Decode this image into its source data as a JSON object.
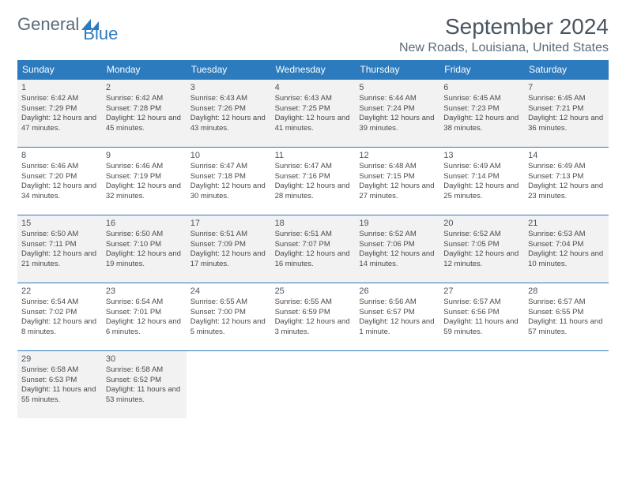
{
  "logo": {
    "general": "General",
    "blue": "Blue"
  },
  "title": "September 2024",
  "location": "New Roads, Louisiana, United States",
  "header_bg": "#2c7bbf",
  "border_color": "#2c7bbf",
  "odd_row_bg": "#f2f2f2",
  "even_row_bg": "#ffffff",
  "text_color": "#4a4a4a",
  "weekdays": [
    "Sunday",
    "Monday",
    "Tuesday",
    "Wednesday",
    "Thursday",
    "Friday",
    "Saturday"
  ],
  "days": [
    {
      "n": 1,
      "sr": "6:42 AM",
      "ss": "7:29 PM",
      "dl": "12 hours and 47 minutes."
    },
    {
      "n": 2,
      "sr": "6:42 AM",
      "ss": "7:28 PM",
      "dl": "12 hours and 45 minutes."
    },
    {
      "n": 3,
      "sr": "6:43 AM",
      "ss": "7:26 PM",
      "dl": "12 hours and 43 minutes."
    },
    {
      "n": 4,
      "sr": "6:43 AM",
      "ss": "7:25 PM",
      "dl": "12 hours and 41 minutes."
    },
    {
      "n": 5,
      "sr": "6:44 AM",
      "ss": "7:24 PM",
      "dl": "12 hours and 39 minutes."
    },
    {
      "n": 6,
      "sr": "6:45 AM",
      "ss": "7:23 PM",
      "dl": "12 hours and 38 minutes."
    },
    {
      "n": 7,
      "sr": "6:45 AM",
      "ss": "7:21 PM",
      "dl": "12 hours and 36 minutes."
    },
    {
      "n": 8,
      "sr": "6:46 AM",
      "ss": "7:20 PM",
      "dl": "12 hours and 34 minutes."
    },
    {
      "n": 9,
      "sr": "6:46 AM",
      "ss": "7:19 PM",
      "dl": "12 hours and 32 minutes."
    },
    {
      "n": 10,
      "sr": "6:47 AM",
      "ss": "7:18 PM",
      "dl": "12 hours and 30 minutes."
    },
    {
      "n": 11,
      "sr": "6:47 AM",
      "ss": "7:16 PM",
      "dl": "12 hours and 28 minutes."
    },
    {
      "n": 12,
      "sr": "6:48 AM",
      "ss": "7:15 PM",
      "dl": "12 hours and 27 minutes."
    },
    {
      "n": 13,
      "sr": "6:49 AM",
      "ss": "7:14 PM",
      "dl": "12 hours and 25 minutes."
    },
    {
      "n": 14,
      "sr": "6:49 AM",
      "ss": "7:13 PM",
      "dl": "12 hours and 23 minutes."
    },
    {
      "n": 15,
      "sr": "6:50 AM",
      "ss": "7:11 PM",
      "dl": "12 hours and 21 minutes."
    },
    {
      "n": 16,
      "sr": "6:50 AM",
      "ss": "7:10 PM",
      "dl": "12 hours and 19 minutes."
    },
    {
      "n": 17,
      "sr": "6:51 AM",
      "ss": "7:09 PM",
      "dl": "12 hours and 17 minutes."
    },
    {
      "n": 18,
      "sr": "6:51 AM",
      "ss": "7:07 PM",
      "dl": "12 hours and 16 minutes."
    },
    {
      "n": 19,
      "sr": "6:52 AM",
      "ss": "7:06 PM",
      "dl": "12 hours and 14 minutes."
    },
    {
      "n": 20,
      "sr": "6:52 AM",
      "ss": "7:05 PM",
      "dl": "12 hours and 12 minutes."
    },
    {
      "n": 21,
      "sr": "6:53 AM",
      "ss": "7:04 PM",
      "dl": "12 hours and 10 minutes."
    },
    {
      "n": 22,
      "sr": "6:54 AM",
      "ss": "7:02 PM",
      "dl": "12 hours and 8 minutes."
    },
    {
      "n": 23,
      "sr": "6:54 AM",
      "ss": "7:01 PM",
      "dl": "12 hours and 6 minutes."
    },
    {
      "n": 24,
      "sr": "6:55 AM",
      "ss": "7:00 PM",
      "dl": "12 hours and 5 minutes."
    },
    {
      "n": 25,
      "sr": "6:55 AM",
      "ss": "6:59 PM",
      "dl": "12 hours and 3 minutes."
    },
    {
      "n": 26,
      "sr": "6:56 AM",
      "ss": "6:57 PM",
      "dl": "12 hours and 1 minute."
    },
    {
      "n": 27,
      "sr": "6:57 AM",
      "ss": "6:56 PM",
      "dl": "11 hours and 59 minutes."
    },
    {
      "n": 28,
      "sr": "6:57 AM",
      "ss": "6:55 PM",
      "dl": "11 hours and 57 minutes."
    },
    {
      "n": 29,
      "sr": "6:58 AM",
      "ss": "6:53 PM",
      "dl": "11 hours and 55 minutes."
    },
    {
      "n": 30,
      "sr": "6:58 AM",
      "ss": "6:52 PM",
      "dl": "11 hours and 53 minutes."
    }
  ],
  "labels": {
    "sunrise": "Sunrise:",
    "sunset": "Sunset:",
    "daylight": "Daylight:"
  }
}
